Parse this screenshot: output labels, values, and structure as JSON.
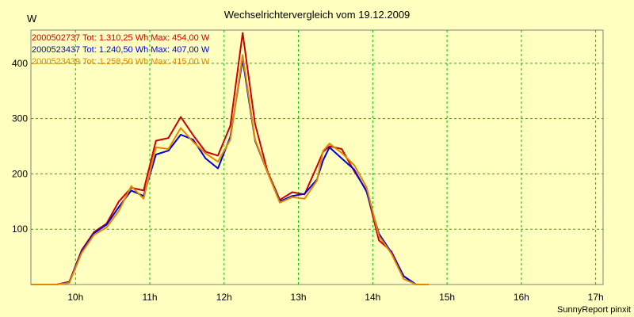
{
  "title": "Wechselrichtervergleich vom 19.12.2009",
  "unit": "W",
  "footer": "SunnyReport pinxit",
  "colors": {
    "background": "#ffffc0",
    "grid": "#00c000"
  },
  "chart_data": {
    "type": "line",
    "title": "Wechselrichtervergleich vom 19.12.2009",
    "ylabel": "W",
    "xlim": [
      9.4,
      17.1
    ],
    "ylim": [
      0,
      460
    ],
    "x_ticks": [
      10,
      11,
      12,
      13,
      14,
      15,
      16,
      17
    ],
    "x_tick_labels": [
      "10h",
      "11h",
      "12h",
      "13h",
      "14h",
      "15h",
      "16h",
      "17h"
    ],
    "y_ticks": [
      100,
      200,
      300,
      400
    ],
    "grid": true,
    "legend_position": "top-left",
    "x": [
      9.4,
      9.75,
      9.917,
      10.083,
      10.25,
      10.417,
      10.583,
      10.75,
      10.917,
      11.083,
      11.25,
      11.417,
      11.583,
      11.75,
      11.917,
      12.083,
      12.25,
      12.417,
      12.583,
      12.75,
      12.917,
      13.083,
      13.25,
      13.333,
      13.417,
      13.583,
      13.75,
      13.917,
      14.083,
      14.25,
      14.417,
      14.583,
      14.75,
      14.917,
      15.083,
      15.25,
      15.417,
      15.583,
      15.75,
      15.917,
      16.083,
      16.25,
      16.417,
      16.583,
      16.75,
      16.917,
      17.1
    ],
    "series": [
      {
        "name": "2000502737",
        "legend": "2000502737  Tot: 1.310,25 Wh Max: 454,00 W",
        "color": "#cc0000",
        "values": [
          0,
          0,
          5,
          62,
          95,
          110,
          150,
          175,
          170,
          260,
          265,
          303,
          270,
          240,
          233,
          287,
          455,
          290,
          205,
          153,
          167,
          163,
          214,
          240,
          250,
          245,
          205,
          170,
          80,
          60,
          15,
          0,
          0,
          null,
          null,
          null,
          null,
          null,
          null,
          null,
          null,
          null,
          null,
          null,
          null,
          null,
          null
        ]
      },
      {
        "name": "2000523437",
        "legend": "2000523437  Tot: 1.240,50 Wh Max: 407,00 W",
        "color": "#0000dd",
        "values": [
          0,
          0,
          4,
          60,
          93,
          108,
          140,
          170,
          160,
          235,
          242,
          271,
          262,
          228,
          210,
          267,
          407,
          260,
          203,
          150,
          160,
          164,
          190,
          225,
          248,
          228,
          208,
          168,
          92,
          58,
          15,
          0,
          0,
          null,
          null,
          null,
          null,
          null,
          null,
          null,
          null,
          null,
          null,
          null,
          null,
          null,
          null
        ]
      },
      {
        "name": "2000523439",
        "legend": "2000523439  Tot: 1.258,50 Wh Max: 415,00 W",
        "color": "#e08800",
        "values": [
          0,
          0,
          3,
          57,
          90,
          103,
          133,
          178,
          155,
          248,
          245,
          283,
          258,
          237,
          222,
          262,
          415,
          262,
          203,
          148,
          158,
          155,
          188,
          242,
          255,
          238,
          216,
          176,
          88,
          56,
          10,
          0,
          0,
          null,
          null,
          null,
          null,
          null,
          null,
          null,
          null,
          null,
          null,
          null,
          null,
          null,
          null
        ]
      }
    ]
  }
}
